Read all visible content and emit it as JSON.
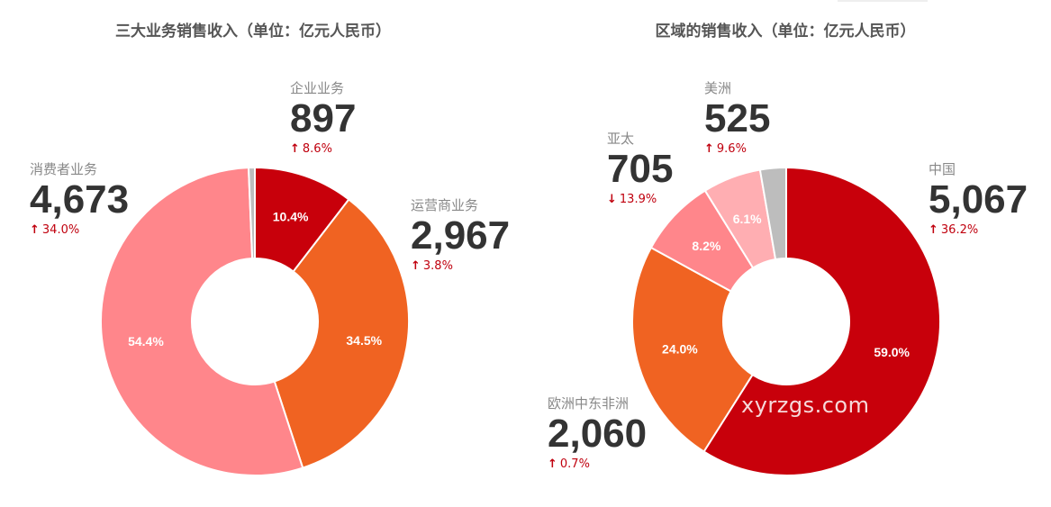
{
  "chart_data": [
    {
      "type": "pie",
      "title": "三大业务销售收入（单位：亿元人民币）",
      "slices": [
        {
          "label": "企业业务",
          "value": 897,
          "percent_label": "10.4%",
          "change": "8.6%",
          "direction": "up",
          "color": "#c8000b"
        },
        {
          "label": "运营商业务",
          "value": 2967,
          "percent_label": "34.5%",
          "change": "3.8%",
          "direction": "up",
          "color": "#f06322"
        },
        {
          "label": "消费者业务",
          "value": 4673,
          "percent_label": "54.4%",
          "change": "34.0%",
          "direction": "up",
          "color": "#ff868b"
        },
        {
          "label": "",
          "value": 56,
          "percent_label": "",
          "change": "",
          "direction": "",
          "color": "#bdbdbd"
        }
      ]
    },
    {
      "type": "pie",
      "title": "区域的销售收入（单位：亿元人民币）",
      "slices": [
        {
          "label": "中国",
          "value": 5067,
          "percent_label": "59.0%",
          "change": "36.2%",
          "direction": "up",
          "color": "#c8000b"
        },
        {
          "label": "欧洲中东非洲",
          "value": 2060,
          "percent_label": "24.0%",
          "change": "0.7%",
          "direction": "up",
          "color": "#f06322"
        },
        {
          "label": "亚太",
          "value": 705,
          "percent_label": "8.2%",
          "change": "13.9%",
          "direction": "down",
          "color": "#ff868b"
        },
        {
          "label": "美洲",
          "value": 525,
          "percent_label": "6.1%",
          "change": "9.6%",
          "direction": "up",
          "color": "#ffaeb2"
        },
        {
          "label": "",
          "value": 234,
          "percent_label": "",
          "change": "",
          "direction": "",
          "color": "#bdbdbd"
        }
      ]
    }
  ],
  "watermark": "xyrzgs.com"
}
